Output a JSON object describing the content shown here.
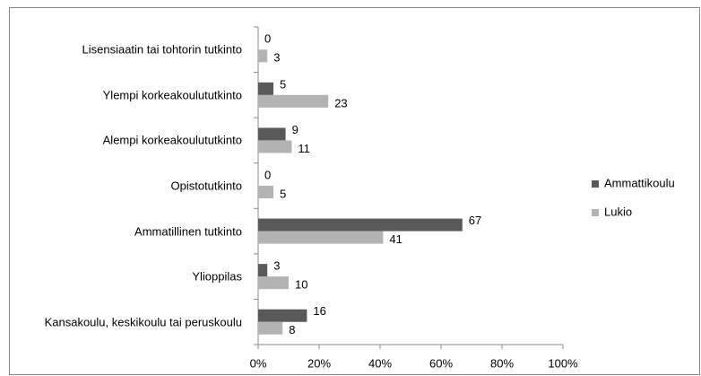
{
  "chart_data": {
    "type": "bar",
    "orientation": "horizontal",
    "categories": [
      "Lisensiaatin tai tohtorin tutkinto",
      "Ylempi korkeakoulututkinto",
      "Alempi korkeakoulututkinto",
      "Opistotutkinto",
      "Ammatillinen tutkinto",
      "Ylioppilas",
      "Kansakoulu, keskikoulu tai peruskoulu"
    ],
    "series": [
      {
        "name": "Ammattikoulu",
        "color": "#595959",
        "values": [
          0,
          5,
          9,
          0,
          67,
          3,
          16
        ]
      },
      {
        "name": "Lukio",
        "color": "#b3b3b3",
        "values": [
          3,
          23,
          11,
          5,
          41,
          10,
          8
        ]
      }
    ],
    "xlim": [
      0,
      100
    ],
    "xticks": [
      {
        "value": 0,
        "label": "0%"
      },
      {
        "value": 20,
        "label": "20%"
      },
      {
        "value": 40,
        "label": "40%"
      },
      {
        "value": 60,
        "label": "60%"
      },
      {
        "value": 80,
        "label": "80%"
      },
      {
        "value": 100,
        "label": "100%"
      }
    ],
    "grid": false,
    "legend": "right"
  }
}
